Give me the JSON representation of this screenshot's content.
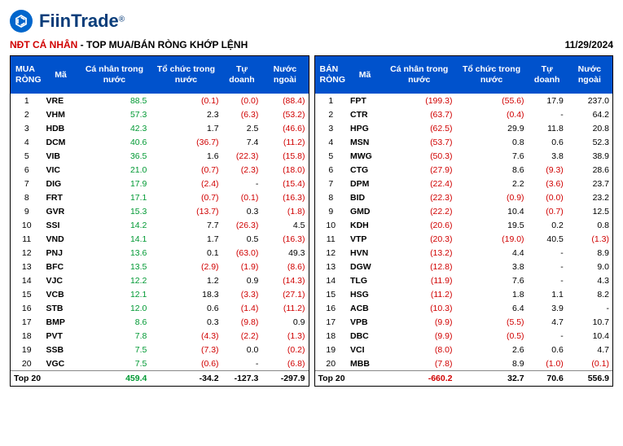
{
  "brand": "FiinTrade",
  "logo_glyph": "⌬",
  "title_red": "NĐT CÁ NHÂN",
  "title_sep": " - ",
  "title_black": "TOP MUA/BÁN RÒNG KHỚP LỆNH",
  "date": "11/29/2024",
  "columns_left": [
    "MUA RÒNG",
    "Mã",
    "Cá nhân trong nước",
    "Tổ chức trong nước",
    "Tự doanh",
    "Nước ngoài"
  ],
  "columns_right": [
    "BÁN RÒNG",
    "Mã",
    "Cá nhân trong nước",
    "Tổ chức trong nước",
    "Tự doanh",
    "Nước ngoài"
  ],
  "footer_label": "Top 20",
  "colors": {
    "header_bg": "#0052cc",
    "header_fg": "#ffffff",
    "pos": "#009933",
    "neg": "#d00000",
    "brand": "#0a3d7a"
  },
  "left": {
    "rows": [
      {
        "n": 1,
        "code": "VRE",
        "c1": "88.5",
        "c2": "(0.1)",
        "c3": "(0.0)",
        "c4": "(88.4)"
      },
      {
        "n": 2,
        "code": "VHM",
        "c1": "57.3",
        "c2": "2.3",
        "c3": "(6.3)",
        "c4": "(53.2)"
      },
      {
        "n": 3,
        "code": "HDB",
        "c1": "42.3",
        "c2": "1.7",
        "c3": "2.5",
        "c4": "(46.6)"
      },
      {
        "n": 4,
        "code": "DCM",
        "c1": "40.6",
        "c2": "(36.7)",
        "c3": "7.4",
        "c4": "(11.2)"
      },
      {
        "n": 5,
        "code": "VIB",
        "c1": "36.5",
        "c2": "1.6",
        "c3": "(22.3)",
        "c4": "(15.8)"
      },
      {
        "n": 6,
        "code": "VIC",
        "c1": "21.0",
        "c2": "(0.7)",
        "c3": "(2.3)",
        "c4": "(18.0)"
      },
      {
        "n": 7,
        "code": "DIG",
        "c1": "17.9",
        "c2": "(2.4)",
        "c3": "-",
        "c4": "(15.4)"
      },
      {
        "n": 8,
        "code": "FRT",
        "c1": "17.1",
        "c2": "(0.7)",
        "c3": "(0.1)",
        "c4": "(16.3)"
      },
      {
        "n": 9,
        "code": "GVR",
        "c1": "15.3",
        "c2": "(13.7)",
        "c3": "0.3",
        "c4": "(1.8)"
      },
      {
        "n": 10,
        "code": "SSI",
        "c1": "14.2",
        "c2": "7.7",
        "c3": "(26.3)",
        "c4": "4.5"
      },
      {
        "n": 11,
        "code": "VND",
        "c1": "14.1",
        "c2": "1.7",
        "c3": "0.5",
        "c4": "(16.3)"
      },
      {
        "n": 12,
        "code": "PNJ",
        "c1": "13.6",
        "c2": "0.1",
        "c3": "(63.0)",
        "c4": "49.3"
      },
      {
        "n": 13,
        "code": "BFC",
        "c1": "13.5",
        "c2": "(2.9)",
        "c3": "(1.9)",
        "c4": "(8.6)"
      },
      {
        "n": 14,
        "code": "VJC",
        "c1": "12.2",
        "c2": "1.2",
        "c3": "0.9",
        "c4": "(14.3)"
      },
      {
        "n": 15,
        "code": "VCB",
        "c1": "12.1",
        "c2": "18.3",
        "c3": "(3.3)",
        "c4": "(27.1)"
      },
      {
        "n": 16,
        "code": "STB",
        "c1": "12.0",
        "c2": "0.6",
        "c3": "(1.4)",
        "c4": "(11.2)"
      },
      {
        "n": 17,
        "code": "BMP",
        "c1": "8.6",
        "c2": "0.3",
        "c3": "(9.8)",
        "c4": "0.9"
      },
      {
        "n": 18,
        "code": "PVT",
        "c1": "7.8",
        "c2": "(4.3)",
        "c3": "(2.2)",
        "c4": "(1.3)"
      },
      {
        "n": 19,
        "code": "SSB",
        "c1": "7.5",
        "c2": "(7.3)",
        "c3": "0.0",
        "c4": "(0.2)"
      },
      {
        "n": 20,
        "code": "VGC",
        "c1": "7.5",
        "c2": "(0.6)",
        "c3": "-",
        "c4": "(6.8)"
      }
    ],
    "foot": {
      "c1": "459.4",
      "c2": "-34.2",
      "c3": "-127.3",
      "c4": "-297.9",
      "c1_cls": "pos",
      "c2_cls": "blk",
      "c3_cls": "blk",
      "c4_cls": "blk"
    }
  },
  "right": {
    "rows": [
      {
        "n": 1,
        "code": "FPT",
        "c1": "(199.3)",
        "c2": "(55.6)",
        "c3": "17.9",
        "c4": "237.0"
      },
      {
        "n": 2,
        "code": "CTR",
        "c1": "(63.7)",
        "c2": "(0.4)",
        "c3": "-",
        "c4": "64.2"
      },
      {
        "n": 3,
        "code": "HPG",
        "c1": "(62.5)",
        "c2": "29.9",
        "c3": "11.8",
        "c4": "20.8"
      },
      {
        "n": 4,
        "code": "MSN",
        "c1": "(53.7)",
        "c2": "0.8",
        "c3": "0.6",
        "c4": "52.3"
      },
      {
        "n": 5,
        "code": "MWG",
        "c1": "(50.3)",
        "c2": "7.6",
        "c3": "3.8",
        "c4": "38.9"
      },
      {
        "n": 6,
        "code": "CTG",
        "c1": "(27.9)",
        "c2": "8.6",
        "c3": "(9.3)",
        "c4": "28.6"
      },
      {
        "n": 7,
        "code": "DPM",
        "c1": "(22.4)",
        "c2": "2.2",
        "c3": "(3.6)",
        "c4": "23.7"
      },
      {
        "n": 8,
        "code": "BID",
        "c1": "(22.3)",
        "c2": "(0.9)",
        "c3": "(0.0)",
        "c4": "23.2"
      },
      {
        "n": 9,
        "code": "GMD",
        "c1": "(22.2)",
        "c2": "10.4",
        "c3": "(0.7)",
        "c4": "12.5"
      },
      {
        "n": 10,
        "code": "KDH",
        "c1": "(20.6)",
        "c2": "19.5",
        "c3": "0.2",
        "c4": "0.8"
      },
      {
        "n": 11,
        "code": "VTP",
        "c1": "(20.3)",
        "c2": "(19.0)",
        "c3": "40.5",
        "c4": "(1.3)"
      },
      {
        "n": 12,
        "code": "HVN",
        "c1": "(13.2)",
        "c2": "4.4",
        "c3": "-",
        "c4": "8.9"
      },
      {
        "n": 13,
        "code": "DGW",
        "c1": "(12.8)",
        "c2": "3.8",
        "c3": "-",
        "c4": "9.0"
      },
      {
        "n": 14,
        "code": "TLG",
        "c1": "(11.9)",
        "c2": "7.6",
        "c3": "-",
        "c4": "4.3"
      },
      {
        "n": 15,
        "code": "HSG",
        "c1": "(11.2)",
        "c2": "1.8",
        "c3": "1.1",
        "c4": "8.2"
      },
      {
        "n": 16,
        "code": "ACB",
        "c1": "(10.3)",
        "c2": "6.4",
        "c3": "3.9",
        "c4": "-"
      },
      {
        "n": 17,
        "code": "VPB",
        "c1": "(9.9)",
        "c2": "(5.5)",
        "c3": "4.7",
        "c4": "10.7"
      },
      {
        "n": 18,
        "code": "DBC",
        "c1": "(9.9)",
        "c2": "(0.5)",
        "c3": "-",
        "c4": "10.4"
      },
      {
        "n": 19,
        "code": "VCI",
        "c1": "(8.0)",
        "c2": "2.6",
        "c3": "0.6",
        "c4": "4.7"
      },
      {
        "n": 20,
        "code": "MBB",
        "c1": "(7.8)",
        "c2": "8.9",
        "c3": "(1.0)",
        "c4": "(0.1)"
      }
    ],
    "foot": {
      "c1": "-660.2",
      "c2": "32.7",
      "c3": "70.6",
      "c4": "556.9",
      "c1_cls": "neg",
      "c2_cls": "blk",
      "c3_cls": "blk",
      "c4_cls": "blk"
    }
  }
}
